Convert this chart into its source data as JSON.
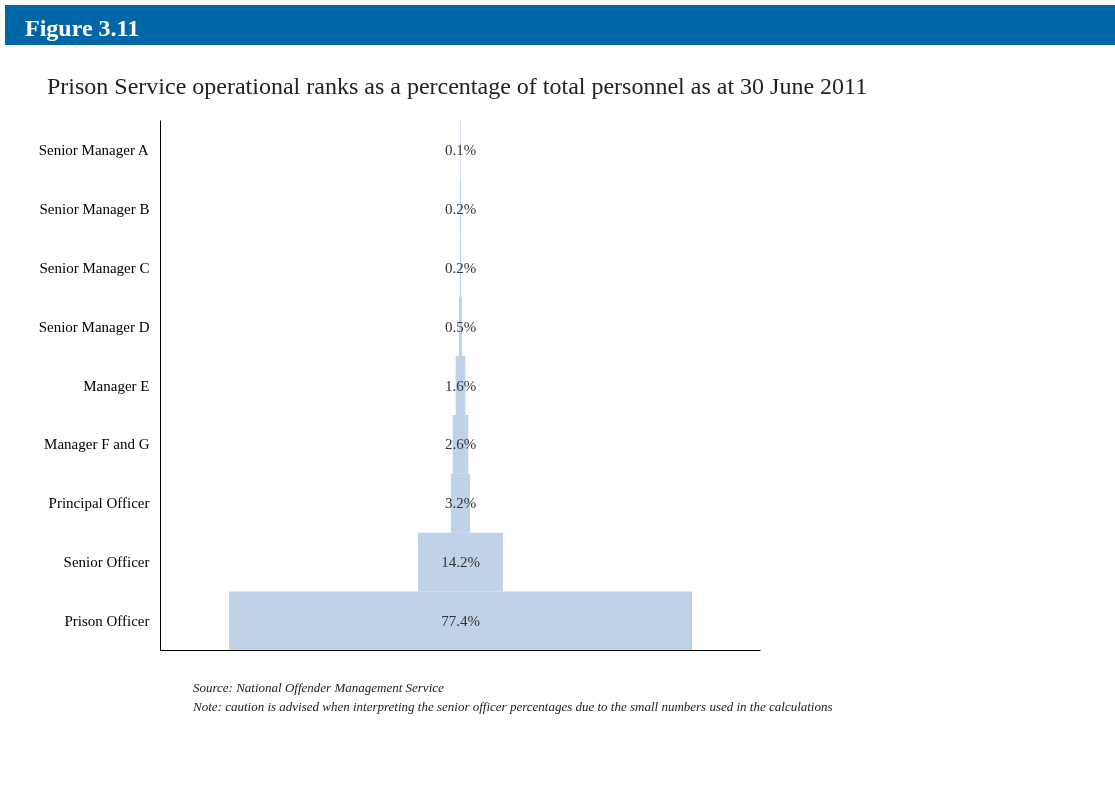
{
  "chart_data": {
    "type": "other",
    "title": "Figure 3.11",
    "subtitle": "Prison Service operational ranks as a percentage of total personnel as at 30 June 2011",
    "categories": [
      "Senior Manager A",
      "Senior Manager B",
      "Senior Manager C",
      "Senior Manager D",
      "Manager E",
      "Manager F and G",
      "Principal Officer",
      "Senior Officer",
      "Prison Officer"
    ],
    "values": [
      0.1,
      0.2,
      0.2,
      0.5,
      1.6,
      2.6,
      3.2,
      14.2,
      77.4
    ],
    "value_labels": [
      "0.1%",
      "0.2%",
      "0.2%",
      "0.5%",
      "1.6%",
      "2.6%",
      "3.2%",
      "14.2%",
      "77.4%"
    ],
    "color": "#c0d2e8",
    "annotations": [
      "Source: National Offender Management Service",
      "Note: caution is advised when interpreting the senior officer percentages due to the small numbers used in the calculations"
    ]
  }
}
